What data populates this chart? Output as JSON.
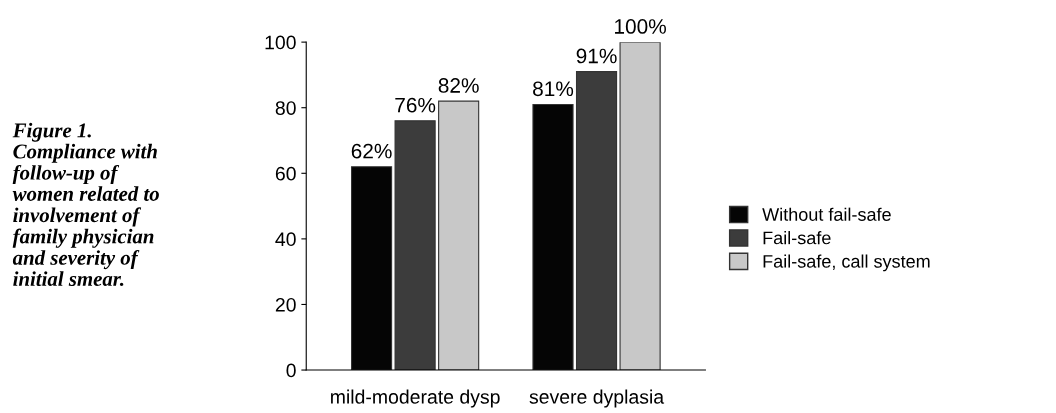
{
  "chart_data": {
    "type": "bar",
    "categories": [
      "mild-moderate dysp",
      "severe dyplasia"
    ],
    "series": [
      {
        "name": "Without fail-safe",
        "color": "#050505",
        "values": [
          62,
          81
        ],
        "value_labels": [
          "62%",
          "81%"
        ]
      },
      {
        "name": "Fail-safe",
        "color": "#3c3c3c",
        "values": [
          76,
          91
        ],
        "value_labels": [
          "76%",
          "91%"
        ]
      },
      {
        "name": "Fail-safe, call system",
        "color": "#c8c8c8",
        "values": [
          82,
          100
        ],
        "value_labels": [
          "82%",
          "100%"
        ]
      }
    ],
    "ylim": [
      0,
      100
    ],
    "yticks": [
      0,
      20,
      40,
      60,
      80,
      100
    ],
    "legend": "right",
    "annotations": [
      "Figure 1.\nCompliance with\nfollow-up of\nwomen related to\ninvolvement of\nfamily physician\nand severity of\ninitial smear."
    ]
  }
}
